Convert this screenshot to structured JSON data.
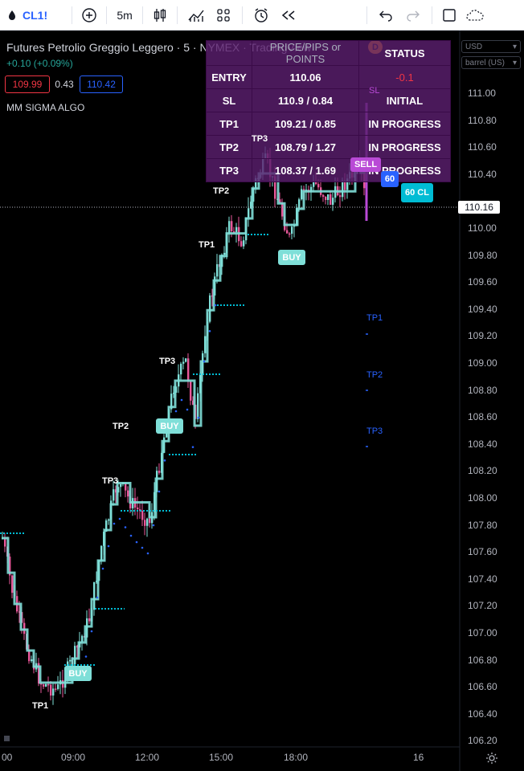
{
  "toolbar": {
    "symbol": "CL1!",
    "interval": "5m"
  },
  "legend": {
    "title": "Futures Petrolio Greggio Leggero · 5 · NYMEX · TradingView",
    "change": "+0.10 (+0.09%)",
    "bid": "109.99",
    "spread": "0.43",
    "ask": "110.42",
    "indicator": "MM SIGMA ALGO",
    "d_badge": "D"
  },
  "info_table": {
    "headers": [
      "",
      "PRICE/PIPS or POINTS",
      "STATUS"
    ],
    "rows": [
      {
        "label": "ENTRY",
        "price": "110.06",
        "status": "-0.1"
      },
      {
        "label": "SL",
        "price": "110.9 / 0.84",
        "status": "INITIAL"
      },
      {
        "label": "TP1",
        "price": "109.21 / 0.85",
        "status": "IN PROGRESS"
      },
      {
        "label": "TP2",
        "price": "108.79 / 1.27",
        "status": "IN PROGRESS"
      },
      {
        "label": "TP3",
        "price": "108.37 / 1.69",
        "status": "IN PROGRESS"
      }
    ]
  },
  "price_axis": {
    "currency": "USD",
    "unit": "barrel (US)",
    "ticks": [
      "111.00",
      "110.80",
      "110.60",
      "110.40",
      "110.00",
      "109.80",
      "109.60",
      "109.40",
      "109.20",
      "109.00",
      "108.80",
      "108.60",
      "108.40",
      "108.20",
      "108.00",
      "107.80",
      "107.60",
      "107.40",
      "107.20",
      "107.00",
      "106.80",
      "106.60",
      "106.40",
      "106.20"
    ],
    "last_price": "110.16"
  },
  "time_axis": {
    "ticks": [
      "00",
      "09:00",
      "12:00",
      "15:00",
      "18:00",
      "16"
    ]
  },
  "chart_labels": {
    "tp3_top": "TP3",
    "tp2_top": "TP2",
    "tp1_top": "TP1",
    "tp3_mid": "TP3",
    "tp2_mid": "TP2",
    "tp1_low": "TP1",
    "tp3_low": "TP3",
    "buy1": "BUY",
    "buy2": "BUY",
    "buy3": "BUY",
    "sell": "SELL",
    "sl": "SL",
    "sixty": "60",
    "sixty_cl": "60 CL",
    "tp1_right": "TP1",
    "tp2_right": "TP2",
    "tp3_right": "TP3"
  },
  "colors": {
    "bull": "#7fdfd8",
    "bear": "#e8589a",
    "magenta": "#b94ad6",
    "teal_badge": "#7fdfd8",
    "blue": "#2962ff",
    "cyan": "#00bcd4"
  }
}
